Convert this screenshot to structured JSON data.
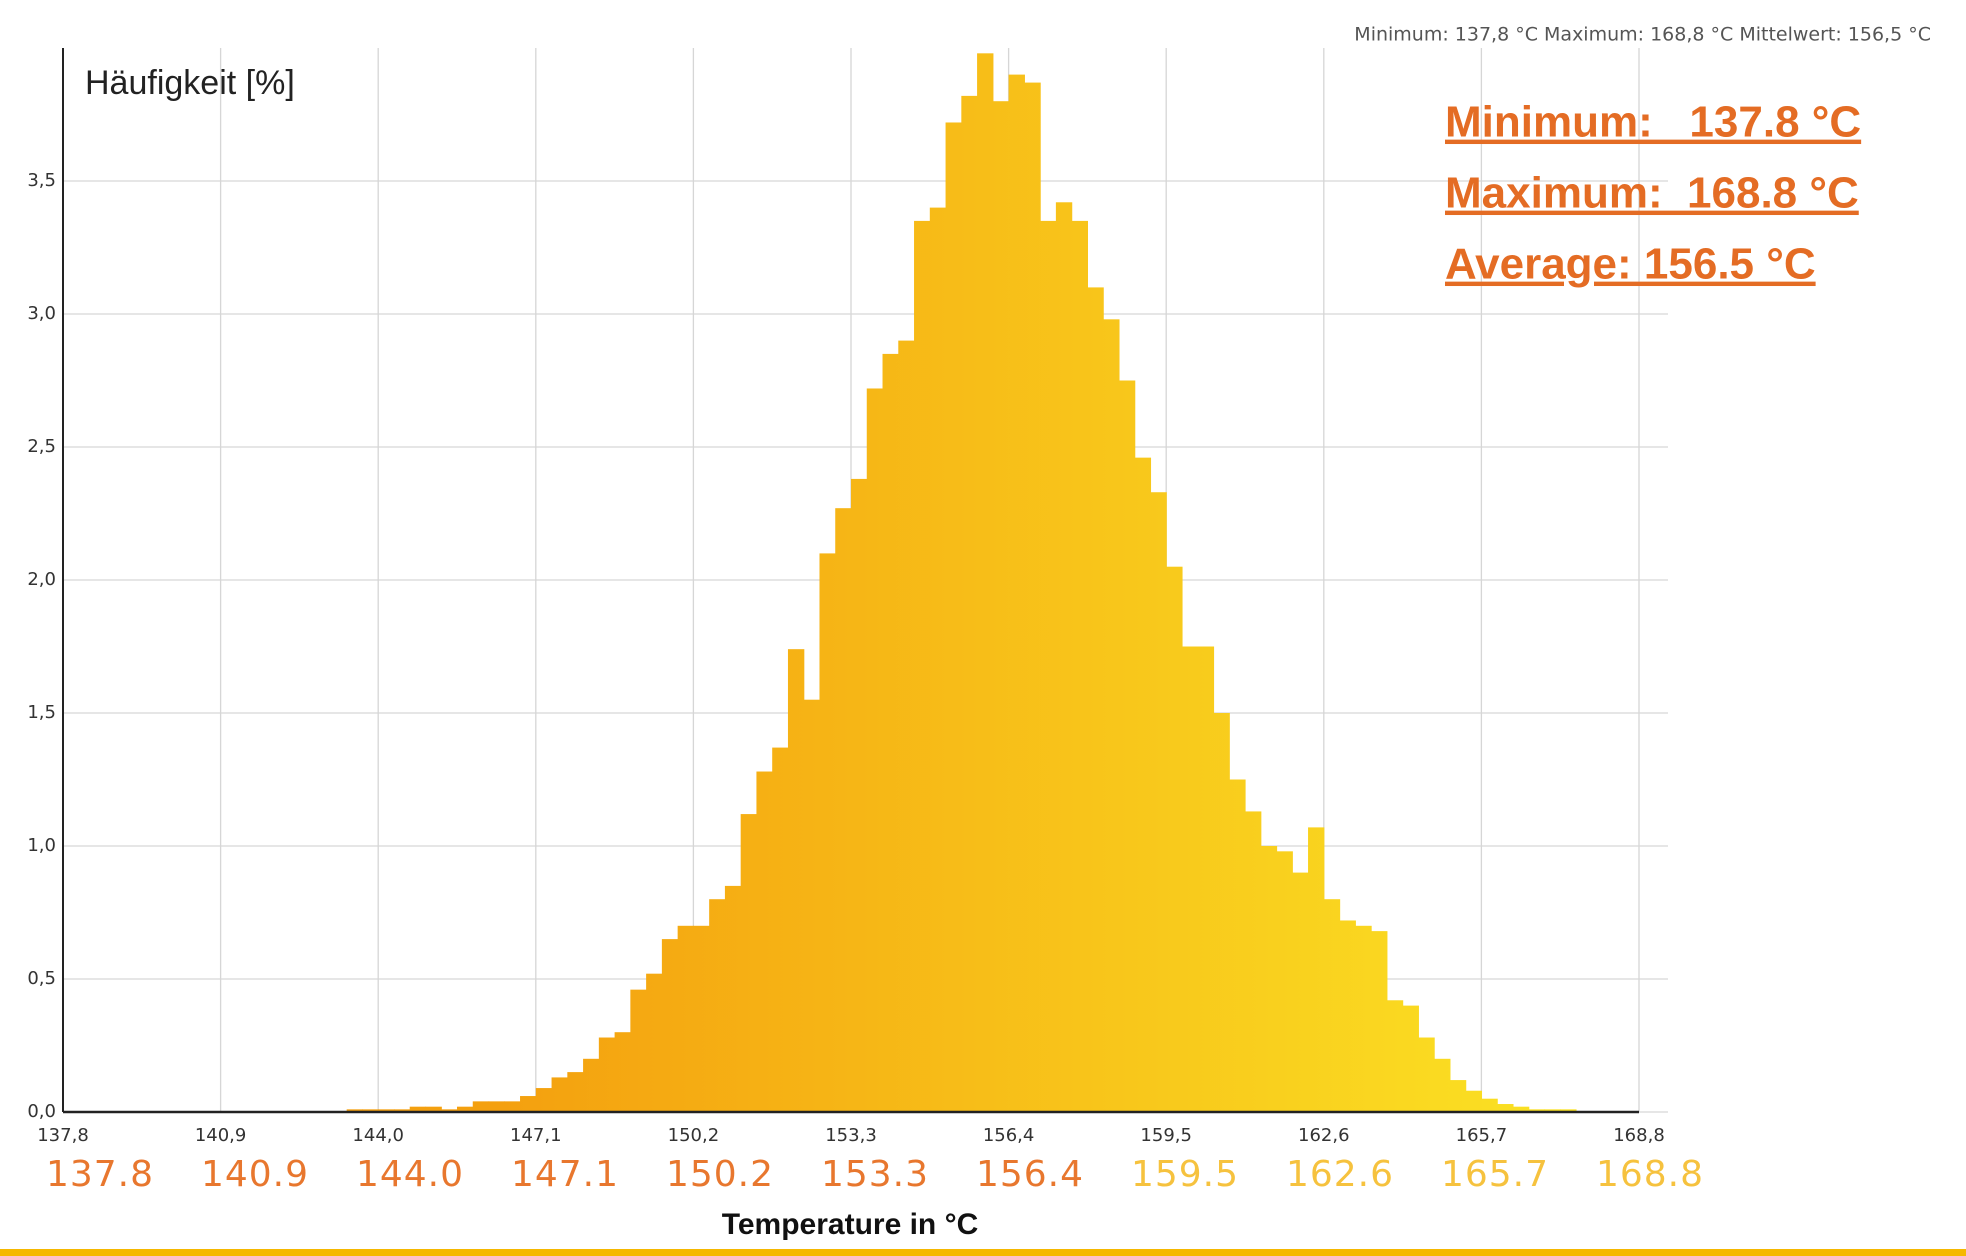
{
  "chart_data": {
    "type": "histogram",
    "header": "Minimum: 137,8 °C Maximum: 168,8 °C Mittelwert: 156,5 °C",
    "ylabel": "Häufigkeit [%]",
    "xlabel": "Temperature in °C",
    "annotations": [
      "Minimum:   137.8 °C",
      "Maximum:  168.8 °C",
      "Average: 156.5 °C"
    ],
    "annotation_color": "#e46c24",
    "gradient": [
      "#f4a00f",
      "#fbe424"
    ],
    "bins": [
      137.8,
      138.11,
      138.42,
      138.73,
      139.04,
      139.35,
      139.66,
      139.97,
      140.28,
      140.59,
      140.9,
      141.21,
      141.52,
      141.83,
      142.14,
      142.45,
      142.76,
      143.07,
      143.38,
      143.69,
      144.0,
      144.31,
      144.62,
      144.93,
      145.24,
      145.55,
      145.86,
      146.17,
      146.48,
      146.79,
      147.1,
      147.41,
      147.72,
      148.03,
      148.34,
      148.65,
      148.96,
      149.27,
      149.58,
      149.89,
      150.2,
      150.51,
      150.82,
      151.13,
      151.44,
      151.75,
      152.06,
      152.37,
      152.68,
      152.99,
      153.3,
      153.61,
      153.92,
      154.23,
      154.54,
      154.85,
      155.16,
      155.47,
      155.78,
      156.09,
      156.4,
      156.71,
      157.02,
      157.33,
      157.64,
      157.95,
      158.26,
      158.57,
      158.88,
      159.19,
      159.5,
      159.81,
      160.12,
      160.43,
      160.74,
      161.05,
      161.36,
      161.67,
      161.98,
      162.29,
      162.6,
      162.91,
      163.22,
      163.53,
      163.84,
      164.15,
      164.46,
      164.77,
      165.08,
      165.39,
      165.7,
      166.01,
      166.32,
      166.63,
      166.94,
      167.25,
      167.56,
      167.87,
      168.18,
      168.49,
      168.8
    ],
    "values": [
      0,
      0,
      0,
      0,
      0,
      0,
      0,
      0,
      0,
      0,
      0,
      0,
      0,
      0,
      0,
      0,
      0,
      0,
      0.01,
      0.01,
      0.01,
      0.01,
      0.02,
      0.02,
      0.01,
      0.02,
      0.04,
      0.04,
      0.04,
      0.06,
      0.09,
      0.13,
      0.15,
      0.2,
      0.28,
      0.3,
      0.46,
      0.52,
      0.65,
      0.7,
      0.7,
      0.8,
      0.85,
      1.12,
      1.28,
      1.37,
      1.74,
      1.55,
      2.1,
      2.27,
      2.38,
      2.72,
      2.85,
      2.9,
      3.35,
      3.4,
      3.72,
      3.82,
      3.98,
      3.8,
      3.9,
      3.87,
      3.35,
      3.42,
      3.35,
      3.1,
      2.98,
      2.75,
      2.46,
      2.33,
      2.05,
      1.75,
      1.75,
      1.5,
      1.25,
      1.13,
      1.0,
      0.98,
      0.9,
      1.07,
      0.8,
      0.72,
      0.7,
      0.68,
      0.42,
      0.4,
      0.28,
      0.2,
      0.12,
      0.08,
      0.05,
      0.03,
      0.02,
      0.01,
      0.01,
      0.01,
      0,
      0,
      0,
      0
    ],
    "xlim": [
      137.8,
      168.8
    ],
    "xticks": [
      {
        "value": 137.8,
        "label": "137,8"
      },
      {
        "value": 140.9,
        "label": "140,9"
      },
      {
        "value": 144.0,
        "label": "144,0"
      },
      {
        "value": 147.1,
        "label": "147,1"
      },
      {
        "value": 150.2,
        "label": "150,2"
      },
      {
        "value": 153.3,
        "label": "153,3"
      },
      {
        "value": 156.4,
        "label": "156,4"
      },
      {
        "value": 159.5,
        "label": "159,5"
      },
      {
        "value": 162.6,
        "label": "162,6"
      },
      {
        "value": 165.7,
        "label": "165,7"
      },
      {
        "value": 168.8,
        "label": "168,8"
      }
    ],
    "ylim": [
      0,
      4
    ],
    "yticks": [
      {
        "value": 0,
        "label": "0,0"
      },
      {
        "value": 0.5,
        "label": "0,5"
      },
      {
        "value": 1,
        "label": "1,0"
      },
      {
        "value": 1.5,
        "label": "1,5"
      },
      {
        "value": 2,
        "label": "2,0"
      },
      {
        "value": 2.5,
        "label": "2,5"
      },
      {
        "value": 3,
        "label": "3,0"
      },
      {
        "value": 3.5,
        "label": "3,5"
      }
    ],
    "grid": true,
    "overlay_labels": [
      "137.8",
      "140.9",
      "144.0",
      "147.1",
      "150.2",
      "153.3",
      "156.4",
      "159.5",
      "162.6",
      "165.7",
      "168.8"
    ],
    "overlay_colors": [
      "#e8772e",
      "#e8772e",
      "#e8772e",
      "#e8772e",
      "#e8772e",
      "#e8772e",
      "#e8772e",
      "#f6c23e",
      "#f6c23e",
      "#f6c23e",
      "#f6c23e"
    ]
  }
}
